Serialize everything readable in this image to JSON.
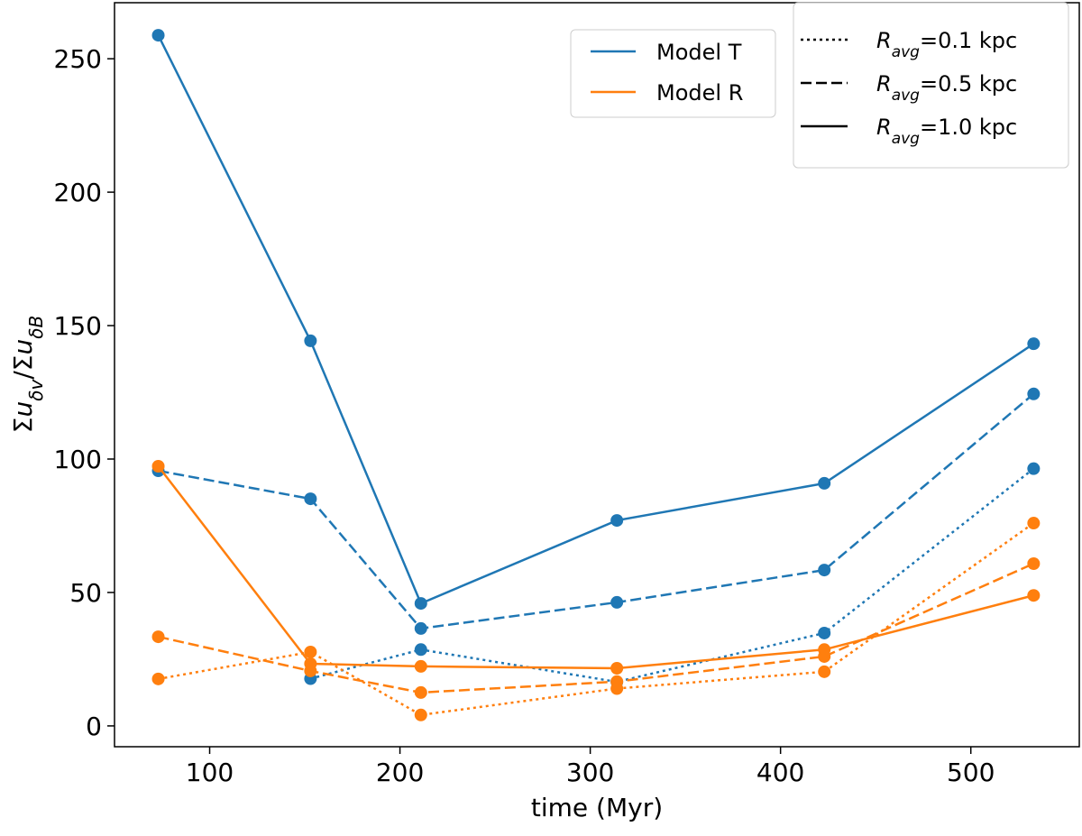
{
  "chart_data": {
    "type": "line",
    "x": [
      73,
      153,
      211,
      314,
      423,
      533
    ],
    "xlim": [
      50,
      557
    ],
    "xticks": [
      100,
      200,
      300,
      400,
      500
    ],
    "ylim": [
      -7.8,
      271
    ],
    "yticks": [
      0,
      50,
      100,
      150,
      200,
      250
    ],
    "xlabel": "time (Myr)",
    "ylabel": [
      {
        "text": "Σ"
      },
      {
        "text": "u",
        "italic": true
      },
      {
        "text": "δv",
        "sub": true
      },
      {
        "text": "/Σ"
      },
      {
        "text": "u",
        "italic": true
      },
      {
        "text": "δB",
        "sub": true
      }
    ],
    "legend_models": [
      {
        "name": "Model T",
        "color": "#1f77b4"
      },
      {
        "name": "Model R",
        "color": "#ff7f0e"
      }
    ],
    "legend_radii": [
      {
        "symbol": "R",
        "subscript": "avg",
        "text": "=0.1 kpc",
        "dash": "dotted"
      },
      {
        "symbol": "R",
        "subscript": "avg",
        "text": "=0.5 kpc",
        "dash": "dashed"
      },
      {
        "symbol": "R",
        "subscript": "avg",
        "text": "=1.0 kpc",
        "dash": "solid"
      }
    ],
    "series": [
      {
        "color": "#1f77b4",
        "dash": "solid",
        "values": [
          258.8,
          144.3,
          45.9,
          77.0,
          90.9,
          143.2
        ]
      },
      {
        "color": "#1f77b4",
        "dash": "dashed",
        "values": [
          95.6,
          85.1,
          36.5,
          46.3,
          58.4,
          124.4
        ]
      },
      {
        "color": "#1f77b4",
        "dash": "dotted",
        "values": [
          null,
          17.7,
          28.6,
          16.5,
          34.8,
          96.4
        ]
      },
      {
        "color": "#ff7f0e",
        "dash": "solid",
        "values": [
          97.3,
          23.3,
          22.3,
          21.6,
          28.6,
          48.9
        ]
      },
      {
        "color": "#ff7f0e",
        "dash": "dashed",
        "values": [
          33.4,
          20.6,
          12.5,
          16.6,
          26.0,
          60.8
        ]
      },
      {
        "color": "#ff7f0e",
        "dash": "dotted",
        "values": [
          17.6,
          27.7,
          4.1,
          14.0,
          20.3,
          76.0
        ]
      }
    ]
  }
}
